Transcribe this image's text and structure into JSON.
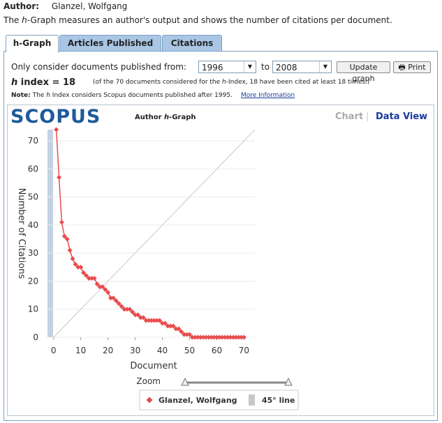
{
  "header": {
    "author_label": "Author:",
    "author_name": "Glanzel, Wolfgang",
    "description": [
      "The ",
      "h",
      "-Graph measures an author's output and shows the number of citations per document."
    ]
  },
  "tabs": [
    "h-Graph",
    "Articles Published",
    "Citations"
  ],
  "controls": {
    "range_label": "Only consider documents published from:",
    "from_year": "1996",
    "to_label": "to",
    "to_year": "2008",
    "update_button": "Update graph",
    "print_button": "Print"
  },
  "h_index": {
    "label": [
      "h",
      " index = 18"
    ],
    "detail": [
      "(of the 70 documents considered for the ",
      "h",
      "-Index, 18 have been cited at least 18 times.)"
    ]
  },
  "note": {
    "label": "Note:",
    "text": [
      "The ",
      "h",
      " Index considers Scopus documents published after 1995."
    ],
    "link": "More Information"
  },
  "chart_panel": {
    "logo": "SCOPUS",
    "title": [
      "Author ",
      "h",
      "-Graph"
    ],
    "views": [
      "Chart",
      "Data View"
    ]
  },
  "chart_data": {
    "type": "line",
    "xlabel": "Document",
    "ylabel": "Number of Citations",
    "zoom_label": "Zoom",
    "xlim": [
      -2.5,
      74
    ],
    "ylim": [
      0,
      74
    ],
    "xticks": [
      0,
      10,
      20,
      30,
      40,
      50,
      60,
      70
    ],
    "yticks": [
      0,
      10,
      20,
      30,
      40,
      50,
      60,
      70
    ],
    "grid": true,
    "series": [
      {
        "name": "Glanzel, Wolfgang",
        "color": "#e84c4c",
        "x": [
          1,
          2,
          3,
          4,
          5,
          6,
          7,
          8,
          9,
          10,
          11,
          12,
          13,
          14,
          15,
          16,
          17,
          18,
          19,
          20,
          21,
          22,
          23,
          24,
          25,
          26,
          27,
          28,
          29,
          30,
          31,
          32,
          33,
          34,
          35,
          36,
          37,
          38,
          39,
          40,
          41,
          42,
          43,
          44,
          45,
          46,
          47,
          48,
          49,
          50,
          51,
          52,
          53,
          54,
          55,
          56,
          57,
          58,
          59,
          60,
          61,
          62,
          63,
          64,
          65,
          66,
          67,
          68,
          69,
          70
        ],
        "values": [
          74,
          57,
          41,
          36,
          35,
          31,
          28,
          26,
          25,
          25,
          23,
          22,
          21,
          21,
          21,
          19,
          18,
          18,
          17,
          16,
          14,
          14,
          13,
          12,
          11,
          10,
          10,
          10,
          9,
          8,
          8,
          7,
          7,
          6,
          6,
          6,
          6,
          6,
          6,
          5,
          5,
          4,
          4,
          4,
          3,
          3,
          2,
          1,
          1,
          1,
          0,
          0,
          0,
          0,
          0,
          0,
          0,
          0,
          0,
          0,
          0,
          0,
          0,
          0,
          0,
          0,
          0,
          0,
          0,
          0
        ]
      },
      {
        "name": "45° line",
        "color": "#c8c8c8",
        "x": [
          0,
          74
        ],
        "values": [
          0,
          74
        ]
      }
    ]
  }
}
